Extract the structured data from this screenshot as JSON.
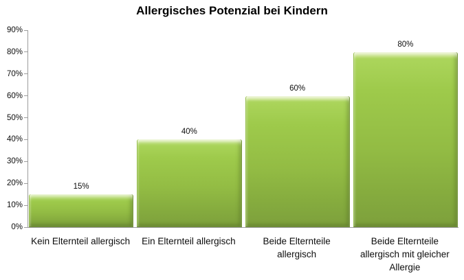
{
  "chart_data": {
    "type": "bar",
    "title": "Allergisches Potenzial bei Kindern",
    "categories": [
      "Kein Elternteil allergisch",
      "Ein Elternteil allergisch",
      "Beide Elternteile allergisch",
      "Beide Elternteile allergisch mit gleicher Allergie"
    ],
    "values": [
      15,
      40,
      60,
      80
    ],
    "data_labels": [
      "15%",
      "40%",
      "60%",
      "80%"
    ],
    "y_tick_labels": [
      "0%",
      "10%",
      "20%",
      "30%",
      "40%",
      "50%",
      "60%",
      "70%",
      "80%",
      "90%"
    ],
    "ylim": [
      0,
      90
    ],
    "xlabel": "",
    "ylabel": "",
    "grid": false,
    "legend": false,
    "colors": {
      "bar_fill": "#9ACA4B",
      "bar_gradient_top": "#CDE48C",
      "bar_gradient_bottom": "#7DA03C",
      "axis_line": "#9B9B9B",
      "text": "#0D0D0D",
      "title": "#000000",
      "background": "#FFFFFF"
    }
  }
}
